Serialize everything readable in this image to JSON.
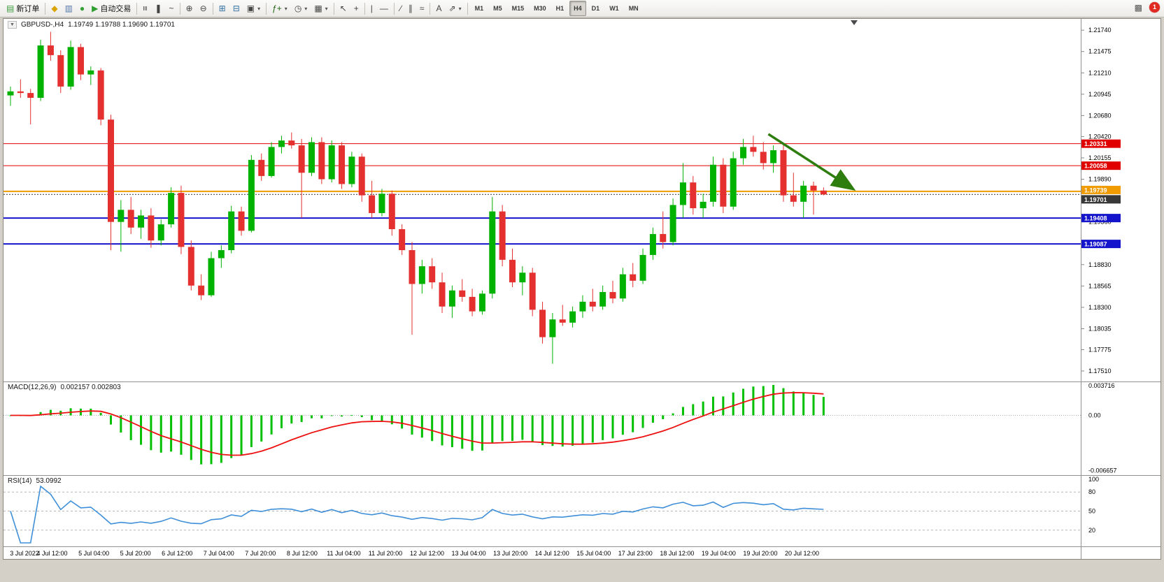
{
  "header": {
    "toolbar_buttons": [
      {
        "name": "new-order-button",
        "label": "新订单",
        "glyph": "▤",
        "glyph_color": "#3c9b3c"
      },
      {
        "sep": true
      },
      {
        "name": "market-watch-button",
        "glyph": "◆",
        "glyph_color": "#d9a300"
      },
      {
        "name": "data-window-button",
        "glyph": "▥",
        "glyph_color": "#5577aa"
      },
      {
        "name": "navigator-button",
        "glyph": "●",
        "glyph_color": "#33a033"
      },
      {
        "name": "autotrading-button",
        "label": "自动交易",
        "glyph": "▶",
        "glyph_color": "#2e9e2e"
      },
      {
        "sep": true
      },
      {
        "name": "bars-chart-button",
        "glyph": "≡",
        "rot": true
      },
      {
        "name": "candlestick-chart-button",
        "glyph": "❚"
      },
      {
        "name": "line-chart-button",
        "glyph": "~"
      },
      {
        "sep": true
      },
      {
        "name": "zoom-in-button",
        "glyph": "⊕"
      },
      {
        "name": "zoom-out-button",
        "glyph": "⊖"
      },
      {
        "sep": true
      },
      {
        "name": "tile-windows-button",
        "glyph": "⊞",
        "glyph_color": "#2f6fa0"
      },
      {
        "name": "auto-scroll-button",
        "glyph": "⊟",
        "glyph_color": "#2f6fa0"
      },
      {
        "name": "chart-shift-button",
        "glyph": "▣",
        "caret": true
      },
      {
        "sep": true
      },
      {
        "name": "indicators-button",
        "glyph": "ƒ+",
        "glyph_color": "#20620f",
        "caret": true
      },
      {
        "name": "periods-button",
        "glyph": "◷",
        "caret": true
      },
      {
        "name": "templates-button",
        "glyph": "▦",
        "caret": true
      },
      {
        "sep": true
      },
      {
        "name": "cursor-button",
        "glyph": "↖"
      },
      {
        "name": "crosshair-button",
        "glyph": "+"
      },
      {
        "sep": true
      },
      {
        "name": "vertical-line-button",
        "glyph": "|"
      },
      {
        "name": "horizontal-line-button",
        "glyph": "—"
      },
      {
        "sep": true
      },
      {
        "name": "trendline-button",
        "glyph": "∕"
      },
      {
        "name": "equidistant-channel-button",
        "glyph": "∥"
      },
      {
        "name": "fibonacci-button",
        "glyph": "≈"
      },
      {
        "sep": true
      },
      {
        "name": "text-button",
        "glyph": "A"
      },
      {
        "name": "arrows-button",
        "glyph": "⇗",
        "caret": true
      },
      {
        "sep": true
      }
    ],
    "timeframes": [
      {
        "label": "M1"
      },
      {
        "label": "M5"
      },
      {
        "label": "M15"
      },
      {
        "label": "M30"
      },
      {
        "label": "H1"
      },
      {
        "label": "H4",
        "active": true
      },
      {
        "label": "D1"
      },
      {
        "label": "W1"
      },
      {
        "label": "MN"
      }
    ],
    "notification_badge": "1"
  },
  "chart_data": {
    "type": "candlestick",
    "symbol_title": "GBPUSD-,H4",
    "ohlc_title": "1.19749 1.19788 1.19690 1.19701",
    "one_click_glyph": "▼",
    "colors": {
      "up": "#00b200",
      "down": "#e53030",
      "background": "#ffffff"
    },
    "price_axis": {
      "max": 1.2188,
      "min": 1.1738,
      "labels": [
        "1.21740",
        "1.21475",
        "1.21210",
        "1.20945",
        "1.20680",
        "1.20420",
        "1.20155",
        "1.19890",
        "1.19625",
        "1.19360",
        "1.19095",
        "1.18830",
        "1.18565",
        "1.18300",
        "1.18035",
        "1.17775",
        "1.17510"
      ]
    },
    "hlines": [
      {
        "price": 1.20331,
        "label": "1.20331",
        "color": "#e00000",
        "width": 1
      },
      {
        "price": 1.20058,
        "label": "1.20058",
        "color": "#e00000",
        "width": 1
      },
      {
        "price": 1.19739,
        "label": "1.19739",
        "color": "#f09b00",
        "width": 2,
        "label_dy": -2
      },
      {
        "price": 1.19408,
        "label": "1.19408",
        "color": "#1414cc",
        "width": 2
      },
      {
        "price": 1.19087,
        "label": "1.19087",
        "color": "#1414cc",
        "width": 2
      }
    ],
    "current_price": {
      "value": 1.19701,
      "label": "1.19701",
      "color": "#383838",
      "label_dy": 7
    },
    "trend_arrow": {
      "from_bar": 75.5,
      "from_price": 1.2045,
      "to_bar": 83.8,
      "to_price": 1.1978,
      "color": "#2e7d0f"
    },
    "candles": [
      [
        1.2093,
        1.2104,
        1.208,
        1.2098
      ],
      [
        1.2098,
        1.2113,
        1.209,
        1.2096
      ],
      [
        1.2096,
        1.2101,
        1.2057,
        1.209
      ],
      [
        1.209,
        1.2162,
        1.2086,
        1.2155
      ],
      [
        1.2155,
        1.2172,
        1.2136,
        1.2143
      ],
      [
        1.2143,
        1.2149,
        1.2096,
        1.2104
      ],
      [
        1.2104,
        1.2161,
        1.21,
        1.2153
      ],
      [
        1.2153,
        1.2157,
        1.2112,
        1.2119
      ],
      [
        1.2119,
        1.2129,
        1.2106,
        1.2124
      ],
      [
        1.2124,
        1.2127,
        1.2056,
        1.2063
      ],
      [
        1.2063,
        1.2069,
        1.1901,
        1.1936
      ],
      [
        1.1936,
        1.1963,
        1.1899,
        1.1951
      ],
      [
        1.1951,
        1.1967,
        1.1921,
        1.1929
      ],
      [
        1.1929,
        1.1951,
        1.1915,
        1.1944
      ],
      [
        1.1944,
        1.1953,
        1.1904,
        1.1913
      ],
      [
        1.1913,
        1.1939,
        1.1907,
        1.1933
      ],
      [
        1.1933,
        1.1979,
        1.1929,
        1.1972
      ],
      [
        1.1972,
        1.1981,
        1.1896,
        1.1905
      ],
      [
        1.1905,
        1.1913,
        1.1851,
        1.1857
      ],
      [
        1.1857,
        1.1871,
        1.1839,
        1.1845
      ],
      [
        1.1845,
        1.1899,
        1.1843,
        1.1891
      ],
      [
        1.1891,
        1.1907,
        1.1879,
        1.1901
      ],
      [
        1.1901,
        1.1956,
        1.1897,
        1.1949
      ],
      [
        1.1949,
        1.1955,
        1.1919,
        1.1925
      ],
      [
        1.1925,
        1.2019,
        1.1923,
        1.2013
      ],
      [
        1.2013,
        1.2021,
        1.1987,
        1.1993
      ],
      [
        1.1993,
        1.2035,
        1.1991,
        1.2029
      ],
      [
        1.2029,
        1.2043,
        1.2021,
        1.2037
      ],
      [
        1.2037,
        1.2047,
        1.2027,
        1.2031
      ],
      [
        1.2031,
        1.2039,
        1.1941,
        1.1997
      ],
      [
        1.1997,
        1.2041,
        1.1993,
        1.2035
      ],
      [
        1.2035,
        1.2041,
        1.1983,
        1.1989
      ],
      [
        1.1989,
        1.2037,
        1.1985,
        1.2031
      ],
      [
        1.2031,
        1.2035,
        1.1977,
        1.1983
      ],
      [
        1.1983,
        1.2023,
        1.1979,
        1.2017
      ],
      [
        1.2017,
        1.2021,
        1.1961,
        1.1969
      ],
      [
        1.1969,
        1.1987,
        1.1941,
        1.1947
      ],
      [
        1.1947,
        1.1977,
        1.1943,
        1.1971
      ],
      [
        1.1971,
        1.1975,
        1.1919,
        1.1927
      ],
      [
        1.1927,
        1.1933,
        1.1895,
        1.1901
      ],
      [
        1.1901,
        1.1911,
        1.1796,
        1.1859
      ],
      [
        1.1859,
        1.1889,
        1.1847,
        1.1881
      ],
      [
        1.1881,
        1.1891,
        1.1853,
        1.1861
      ],
      [
        1.1861,
        1.1873,
        1.1823,
        1.1831
      ],
      [
        1.1831,
        1.1857,
        1.1817,
        1.1851
      ],
      [
        1.1851,
        1.1865,
        1.1837,
        1.1843
      ],
      [
        1.1843,
        1.1853,
        1.1819,
        1.1825
      ],
      [
        1.1825,
        1.1851,
        1.1821,
        1.1847
      ],
      [
        1.1847,
        1.1967,
        1.1841,
        1.1949
      ],
      [
        1.1949,
        1.1957,
        1.1881,
        1.1889
      ],
      [
        1.1889,
        1.1903,
        1.1855,
        1.1861
      ],
      [
        1.1861,
        1.1881,
        1.1845,
        1.1873
      ],
      [
        1.1873,
        1.1879,
        1.1819,
        1.1827
      ],
      [
        1.1827,
        1.1837,
        1.1785,
        1.1793
      ],
      [
        1.1793,
        1.1823,
        1.176,
        1.1815
      ],
      [
        1.1815,
        1.1833,
        1.1807,
        1.1811
      ],
      [
        1.1811,
        1.1831,
        1.1805,
        1.1825
      ],
      [
        1.1825,
        1.1845,
        1.1817,
        1.1837
      ],
      [
        1.1837,
        1.1853,
        1.1825,
        1.1831
      ],
      [
        1.1831,
        1.1857,
        1.1827,
        1.1849
      ],
      [
        1.1849,
        1.1863,
        1.1835,
        1.1841
      ],
      [
        1.1841,
        1.1879,
        1.1837,
        1.1871
      ],
      [
        1.1871,
        1.1885,
        1.1855,
        1.1863
      ],
      [
        1.1863,
        1.1903,
        1.1859,
        1.1895
      ],
      [
        1.1895,
        1.1929,
        1.1889,
        1.1921
      ],
      [
        1.1921,
        1.1949,
        1.1903,
        1.1911
      ],
      [
        1.1911,
        1.1965,
        1.1907,
        1.1957
      ],
      [
        1.1957,
        1.2009,
        1.1941,
        1.1985
      ],
      [
        1.1985,
        1.1993,
        1.1945,
        1.1953
      ],
      [
        1.1953,
        1.1971,
        1.1941,
        1.1961
      ],
      [
        1.1961,
        1.2017,
        1.1955,
        1.2007
      ],
      [
        1.2007,
        1.2015,
        1.1947,
        1.1955
      ],
      [
        1.1955,
        1.2023,
        1.1951,
        1.2015
      ],
      [
        1.2015,
        1.2039,
        1.2007,
        1.2029
      ],
      [
        1.2029,
        1.2043,
        1.2017,
        1.2023
      ],
      [
        1.2023,
        1.2035,
        1.2001,
        1.2009
      ],
      [
        1.2009,
        1.2031,
        1.1997,
        1.2025
      ],
      [
        1.2025,
        1.2033,
        1.1961,
        1.1969
      ],
      [
        1.1969,
        1.1997,
        1.1955,
        1.1961
      ],
      [
        1.1961,
        1.1987,
        1.1941,
        1.1981
      ],
      [
        1.1981,
        1.1986,
        1.1945,
        1.19749
      ],
      [
        1.19749,
        1.19788,
        1.1969,
        1.19701
      ]
    ],
    "macd": {
      "label": "MACD(12,26,9)",
      "values_text": "0.002157 0.002803",
      "params": [
        12,
        26,
        9
      ],
      "scale_max": 0.004,
      "scale_min": -0.0072,
      "axis_labels": [
        {
          "text": "0.003716",
          "value": 0.003716
        },
        {
          "text": "0.00",
          "value": 0
        },
        {
          "text": "-0.006657",
          "value": -0.006657
        }
      ],
      "hist_color": "#00c000",
      "signal_color": "#ee1111"
    },
    "rsi": {
      "label": "RSI(14)",
      "value_text": "53.0992",
      "period": 14,
      "levels": [
        80,
        50,
        20
      ],
      "axis_labels": [
        {
          "text": "100",
          "value": 100
        },
        {
          "text": "80",
          "value": 80
        },
        {
          "text": "50",
          "value": 50
        },
        {
          "text": "20",
          "value": 20
        }
      ],
      "line_color": "#3f8fd8"
    },
    "time_labels": [
      "3 Jul 2022",
      "4 Jul 12:00",
      "5 Jul 04:00",
      "5 Jul 20:00",
      "6 Jul 12:00",
      "7 Jul 04:00",
      "7 Jul 20:00",
      "8 Jul 12:00",
      "11 Jul 04:00",
      "11 Jul 20:00",
      "12 Jul 12:00",
      "13 Jul 04:00",
      "13 Jul 20:00",
      "14 Jul 12:00",
      "15 Jul 04:00",
      "17 Jul 23:00",
      "18 Jul 12:00",
      "19 Jul 04:00",
      "19 Jul 20:00",
      "20 Jul 12:00"
    ],
    "label_step_bars": 4.15
  }
}
